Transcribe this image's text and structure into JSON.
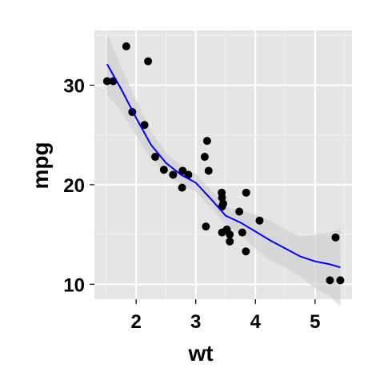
{
  "chart_data": {
    "type": "scatter",
    "title": "",
    "xlabel": "wt",
    "ylabel": "mpg",
    "xlim": [
      1.3,
      5.62
    ],
    "ylim": [
      8.5,
      35.5
    ],
    "x_ticks": [
      2,
      3,
      4,
      5
    ],
    "y_ticks": [
      10,
      20,
      30
    ],
    "x_tick_labels": [
      "2",
      "3",
      "4",
      "5"
    ],
    "y_tick_labels": [
      "10",
      "20",
      "30"
    ],
    "grid": true,
    "legend": "none",
    "colors": {
      "panel_background": "#e5e5e5",
      "grid_major": "#ffffff",
      "grid_minor": "#f2f2f2",
      "points": "#000000",
      "smooth_line": "#0000ff",
      "confidence_band": "#cccccc"
    },
    "points": [
      {
        "x": 1.513,
        "y": 30.4
      },
      {
        "x": 1.615,
        "y": 30.4
      },
      {
        "x": 1.835,
        "y": 33.9
      },
      {
        "x": 1.935,
        "y": 27.3
      },
      {
        "x": 2.14,
        "y": 26.0
      },
      {
        "x": 2.2,
        "y": 32.4
      },
      {
        "x": 2.32,
        "y": 22.8
      },
      {
        "x": 2.465,
        "y": 21.5
      },
      {
        "x": 2.62,
        "y": 21.0
      },
      {
        "x": 2.77,
        "y": 19.7
      },
      {
        "x": 2.78,
        "y": 21.4
      },
      {
        "x": 2.875,
        "y": 21.0
      },
      {
        "x": 3.15,
        "y": 22.8
      },
      {
        "x": 3.17,
        "y": 15.8
      },
      {
        "x": 3.19,
        "y": 24.4
      },
      {
        "x": 3.215,
        "y": 21.4
      },
      {
        "x": 3.435,
        "y": 19.2
      },
      {
        "x": 3.44,
        "y": 18.7
      },
      {
        "x": 3.44,
        "y": 17.8
      },
      {
        "x": 3.44,
        "y": 15.2
      },
      {
        "x": 3.46,
        "y": 18.1
      },
      {
        "x": 3.52,
        "y": 15.5
      },
      {
        "x": 3.57,
        "y": 14.3
      },
      {
        "x": 3.57,
        "y": 15.0
      },
      {
        "x": 3.73,
        "y": 17.3
      },
      {
        "x": 3.78,
        "y": 15.2
      },
      {
        "x": 3.84,
        "y": 13.3
      },
      {
        "x": 3.845,
        "y": 19.2
      },
      {
        "x": 4.07,
        "y": 16.4
      },
      {
        "x": 5.25,
        "y": 10.4
      },
      {
        "x": 5.345,
        "y": 14.7
      },
      {
        "x": 5.424,
        "y": 10.4
      }
    ],
    "smooth": {
      "method": "loess",
      "x": [
        1.513,
        1.75,
        2.0,
        2.25,
        2.5,
        2.75,
        3.0,
        3.25,
        3.5,
        3.75,
        4.0,
        4.25,
        4.5,
        4.75,
        5.0,
        5.25,
        5.424
      ],
      "y": [
        32.1,
        29.6,
        26.7,
        24.0,
        22.2,
        21.0,
        20.2,
        18.6,
        16.9,
        16.2,
        15.3,
        14.4,
        13.6,
        12.8,
        12.3,
        12.0,
        11.7
      ],
      "ymin": [
        29.0,
        27.4,
        24.9,
        22.6,
        21.2,
        20.0,
        19.3,
        17.7,
        16.0,
        15.0,
        13.6,
        12.4,
        11.7,
        10.8,
        9.6,
        8.8,
        7.8
      ],
      "ymax": [
        35.2,
        31.8,
        28.5,
        25.4,
        23.2,
        22.0,
        21.1,
        19.5,
        17.8,
        17.4,
        17.0,
        16.4,
        15.5,
        14.8,
        15.0,
        15.2,
        15.6
      ]
    }
  }
}
